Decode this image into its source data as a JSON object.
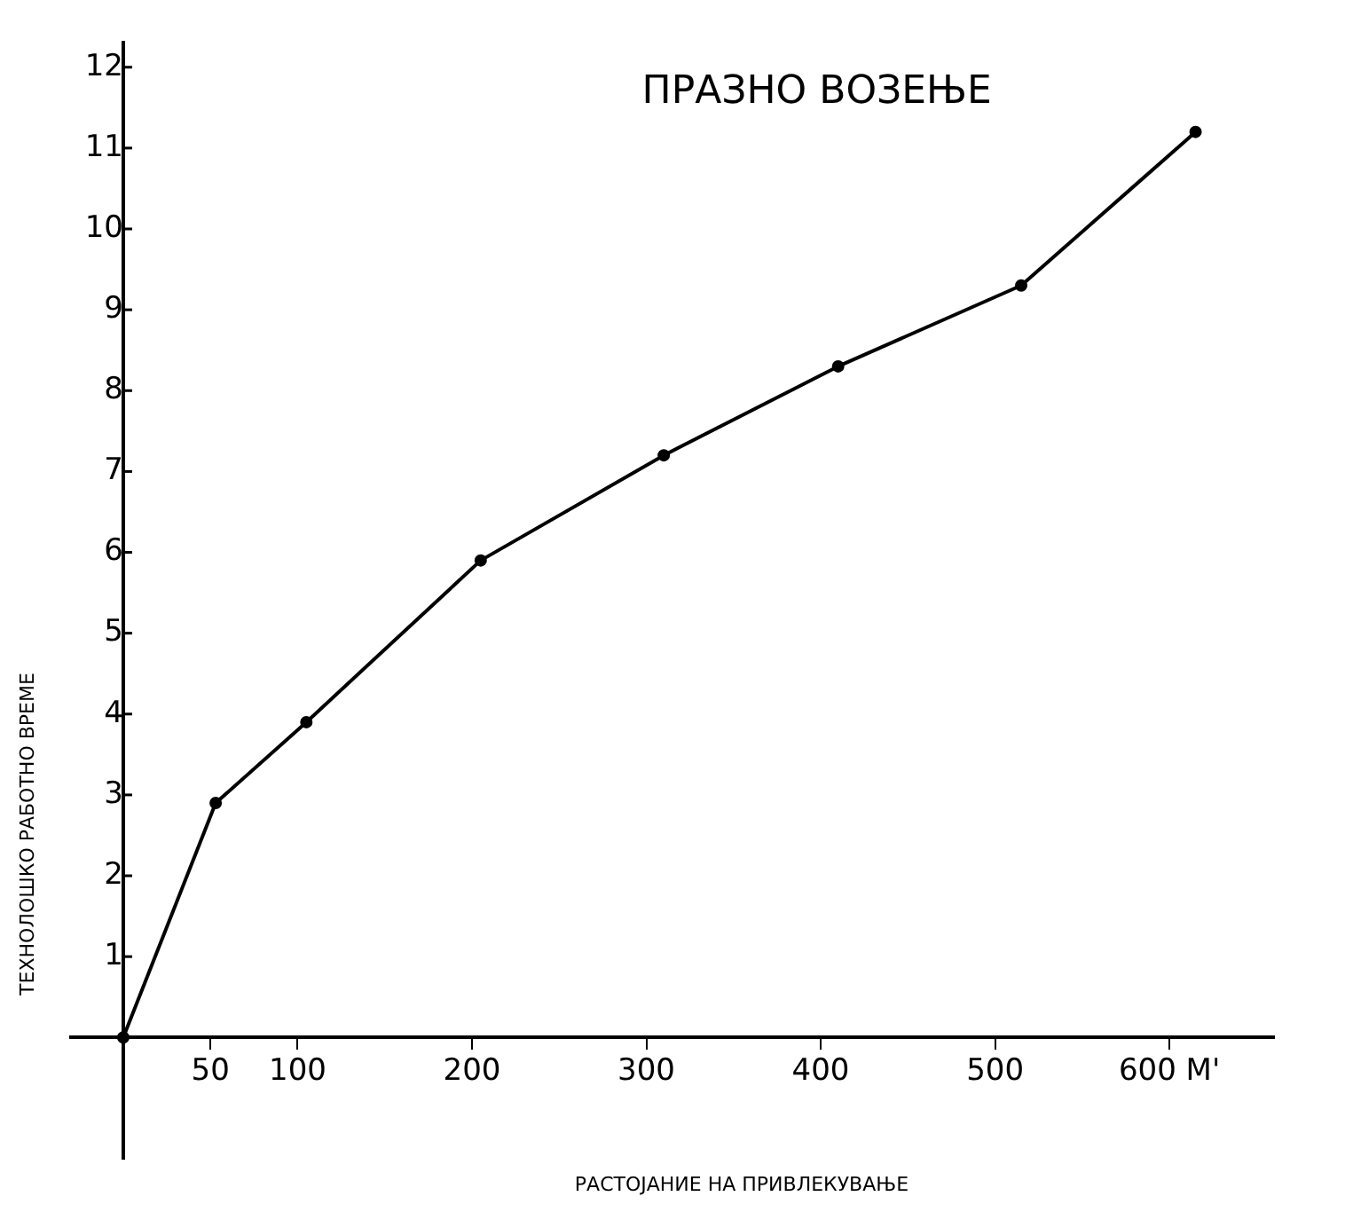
{
  "chart_data": {
    "type": "line",
    "title": "ПРАЗНО ВОЗЕЊЕ",
    "xlabel": "РАСТОЈАНИЕ НА ПРИВЛЕКУВАЊЕ",
    "ylabel": "ТЕХНОЛОШКО РАБОТНО ВРЕМЕ",
    "x": [
      0,
      53,
      105,
      205,
      310,
      410,
      515,
      615
    ],
    "series": [
      {
        "color": "#000000",
        "values": [
          0,
          2.9,
          3.9,
          5.9,
          7.2,
          8.3,
          9.3,
          11.2
        ]
      }
    ],
    "xlim": [
      -30,
      660
    ],
    "ylim": [
      -1.5,
      12.3
    ],
    "xticks": [
      50,
      100,
      200,
      300,
      400,
      500,
      {
        "value": 600,
        "label": "600 M'"
      }
    ],
    "yticks": [
      1,
      2,
      3,
      4,
      5,
      6,
      7,
      8,
      9,
      10,
      11,
      12
    ],
    "grid": false,
    "legend": false,
    "marker": "circle",
    "line_style": "solid"
  }
}
